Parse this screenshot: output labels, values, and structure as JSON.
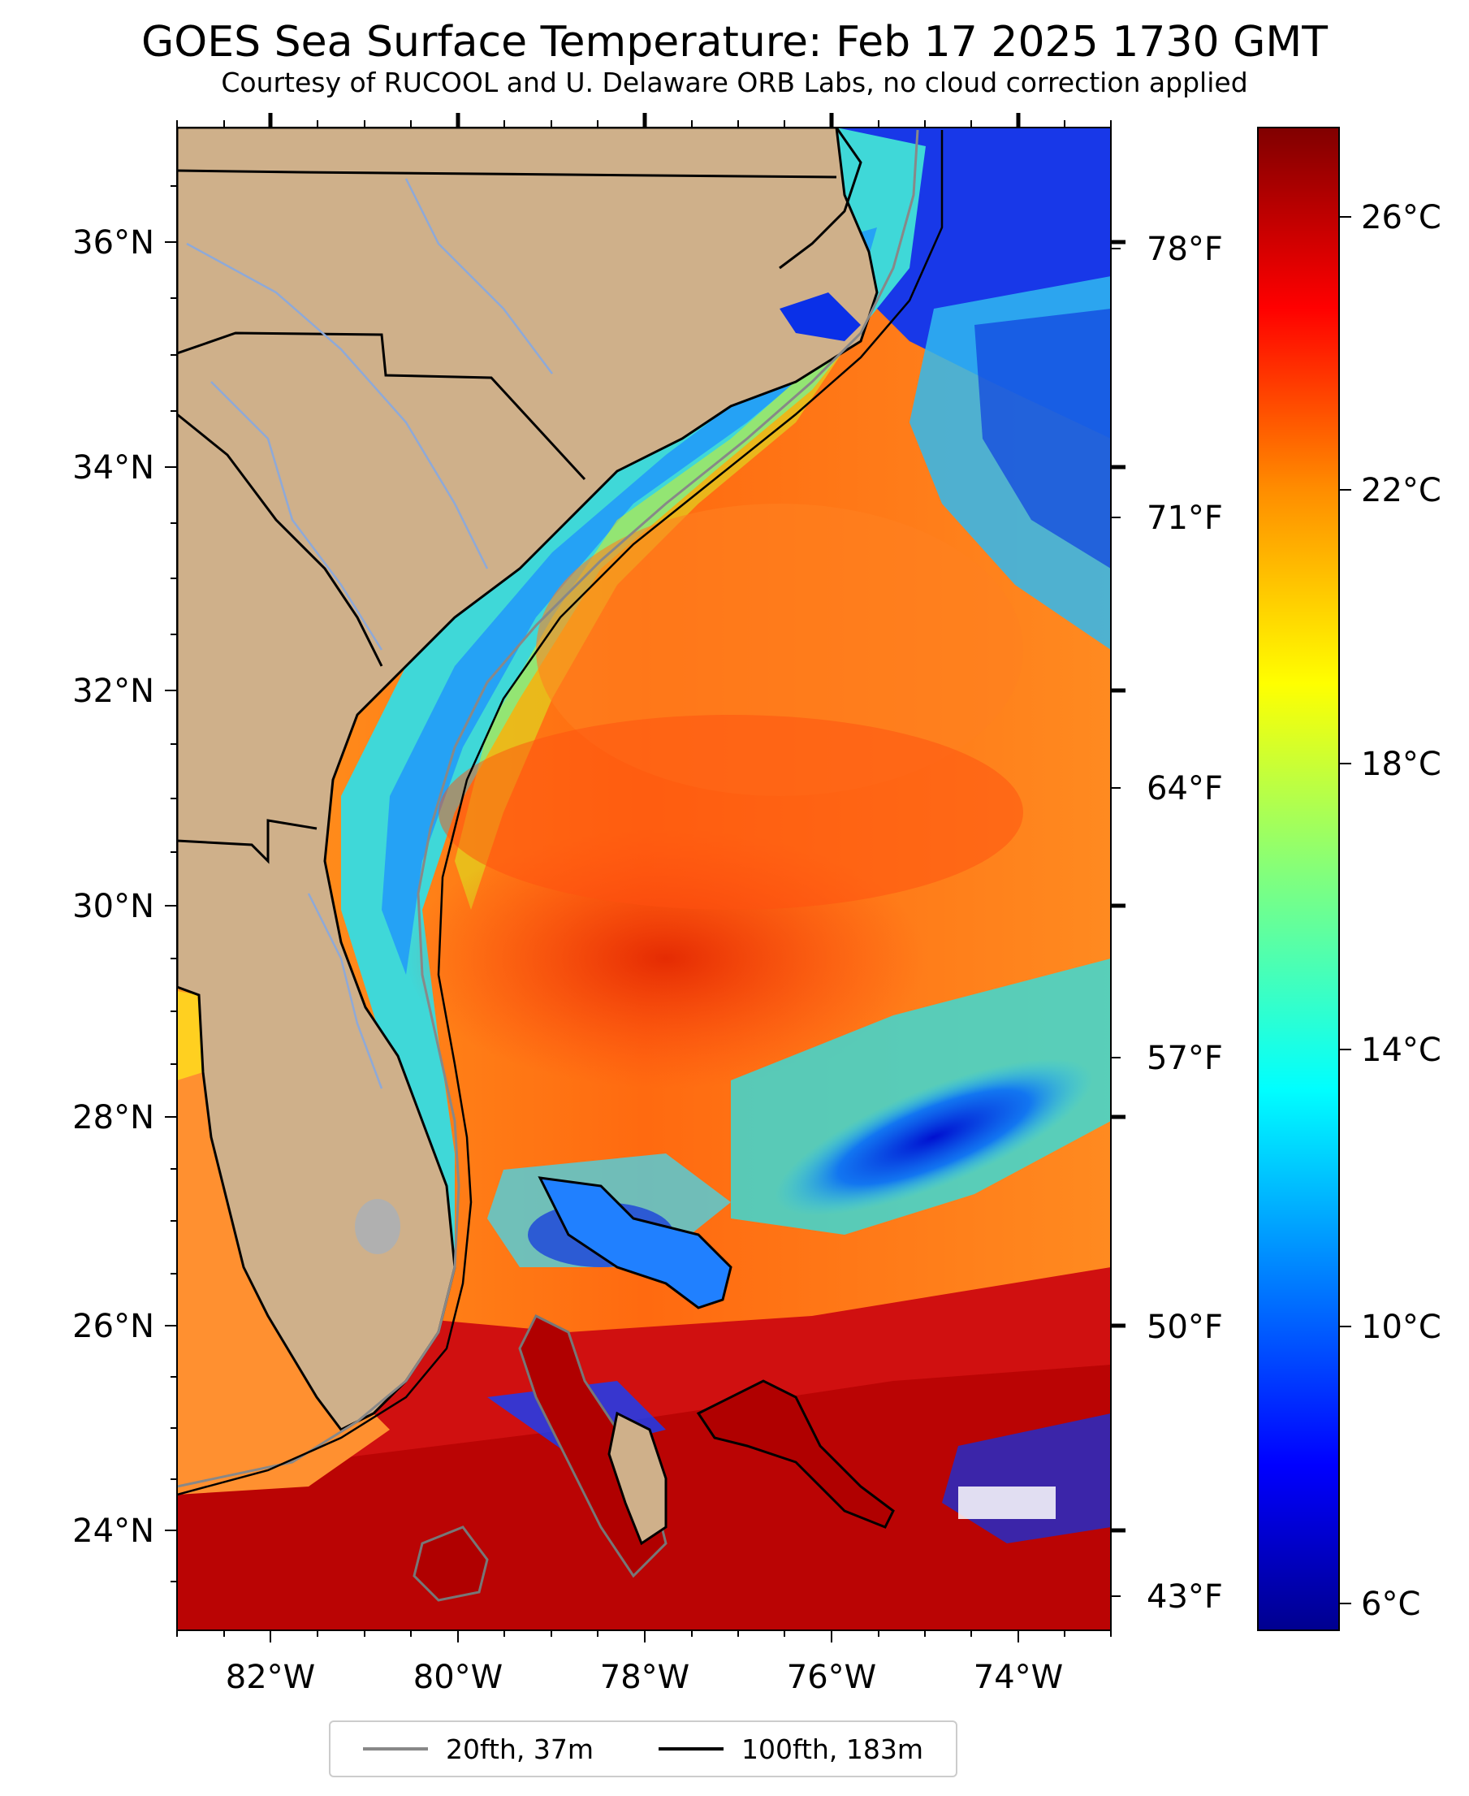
{
  "title": "GOES Sea Surface Temperature: Feb 17 2025 1730 GMT",
  "subtitle": "Courtesy of RUCOOL and U. Delaware ORB Labs, no cloud correction applied",
  "map": {
    "lon_labels": [
      "82°W",
      "80°W",
      "78°W",
      "76°W",
      "74°W"
    ],
    "lat_labels": [
      "36°N",
      "34°N",
      "32°N",
      "30°N",
      "28°N",
      "26°N",
      "24°N"
    ],
    "f_labels": [
      "78°F",
      "71°F",
      "64°F",
      "57°F",
      "50°F",
      "43°F"
    ],
    "colors": {
      "land": "#cfb08a",
      "coast": "#000000",
      "rivers": "#8ea9d8",
      "contour20": "#888888",
      "contour100": "#000000"
    }
  },
  "colorbar": {
    "labels": [
      "26°C",
      "22°C",
      "18°C",
      "14°C",
      "10°C",
      "6°C"
    ],
    "range_c": [
      5.5,
      27.5
    ]
  },
  "legend": {
    "items": [
      {
        "label": "20fth, 37m",
        "color": "#888888"
      },
      {
        "label": "100fth, 183m",
        "color": "#000000"
      }
    ]
  }
}
